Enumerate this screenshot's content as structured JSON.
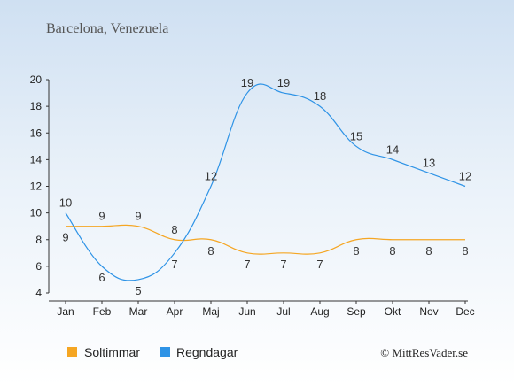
{
  "chart_data": {
    "type": "line",
    "title": "Barcelona, Venezuela",
    "categories": [
      "Jan",
      "Feb",
      "Mar",
      "Apr",
      "Maj",
      "Jun",
      "Jul",
      "Aug",
      "Sep",
      "Okt",
      "Nov",
      "Dec"
    ],
    "series": [
      {
        "name": "Soltimmar",
        "color": "#f5a623",
        "values": [
          9,
          9,
          9,
          8,
          8,
          7,
          7,
          7,
          8,
          8,
          8,
          8
        ]
      },
      {
        "name": "Regndagar",
        "color": "#2e93e6",
        "values": [
          10,
          6,
          5,
          7,
          12,
          19,
          19,
          18,
          15,
          14,
          13,
          12
        ]
      }
    ],
    "ylim": [
      4,
      20
    ],
    "yticks": [
      4,
      6,
      8,
      10,
      12,
      14,
      16,
      18,
      20
    ],
    "grid": false,
    "legend": "bottom-left"
  },
  "copyright": "© MittResVader.se"
}
